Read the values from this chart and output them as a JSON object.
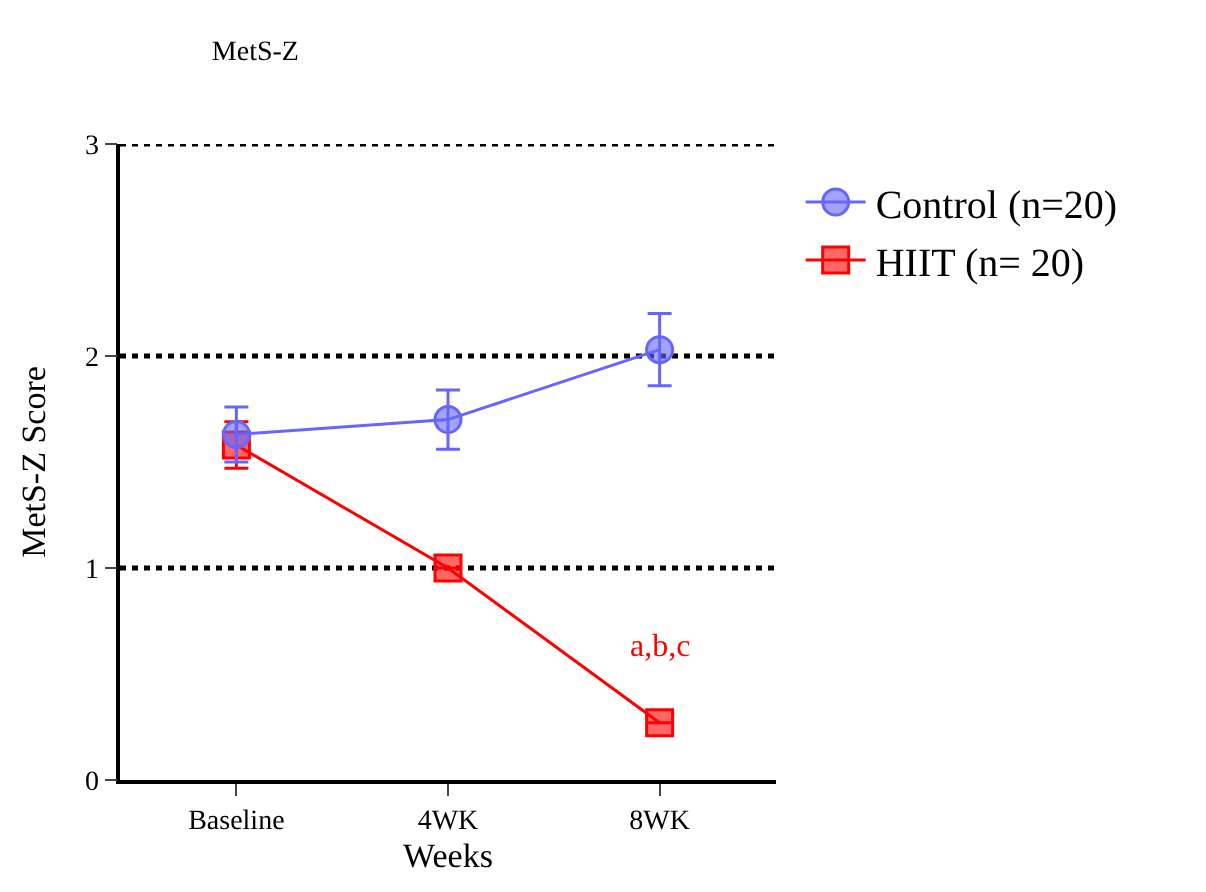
{
  "chart_data": {
    "type": "line",
    "title": "MetS-Z",
    "xlabel": "Weeks",
    "ylabel": "MetS-Z Score",
    "categories": [
      "Baseline",
      "4WK",
      "8WK"
    ],
    "series": [
      {
        "name": "Control (n=20)",
        "color": "#6666ff",
        "marker": "circle",
        "values": [
          1.63,
          1.7,
          2.03
        ],
        "errors": [
          0.13,
          0.14,
          0.17
        ]
      },
      {
        "name": "HIIT (n= 20)",
        "color": "#ff0000",
        "marker": "square",
        "values": [
          1.58,
          1.0,
          0.27
        ],
        "errors": [
          0.11,
          null,
          null
        ]
      }
    ],
    "annotations": [
      "a,b,c"
    ],
    "ylim": [
      0,
      3
    ],
    "yticks": [
      0,
      1,
      2,
      3
    ],
    "grid": "y",
    "legend": "top right"
  }
}
